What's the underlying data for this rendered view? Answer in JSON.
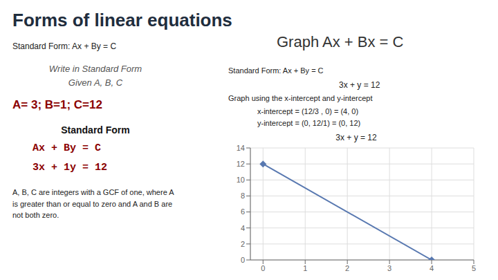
{
  "chart_data": {
    "type": "line",
    "title": "Forms of linear equations",
    "subtitle": "Standard Form: Ax + By = C",
    "annotations": [
      "Write in Standard Form",
      "Given A, B, C",
      "A= 3; B=1; C=12",
      "Standard Form",
      "Ax + By = C",
      "3x + 1y = 12",
      "A, B, C are integers with a GCF of one, where A\nis greater than or equal to zero and A and B are\nnot both zero.",
      "Graph Ax + Bx = C",
      "Standard Form: Ax + By = C",
      "3x + y = 12",
      "Graph using the x-intercept and y-intercept",
      "x-intercept = (12/3 , 0) = (4, 0)",
      "y-intercept = (0, 12/1) = (0, 12)"
    ],
    "plot_title": "3x + y = 12",
    "x": [
      0,
      4
    ],
    "values": [
      12,
      0
    ],
    "color": "#5878B0",
    "marker": "diamond",
    "xlim": [
      -0.3,
      5
    ],
    "xticks": [
      0,
      1,
      2,
      3,
      4,
      5
    ],
    "ylim": [
      0,
      14
    ],
    "yticks": [
      0,
      2,
      4,
      6,
      8,
      10,
      12,
      14
    ],
    "grid": true
  }
}
